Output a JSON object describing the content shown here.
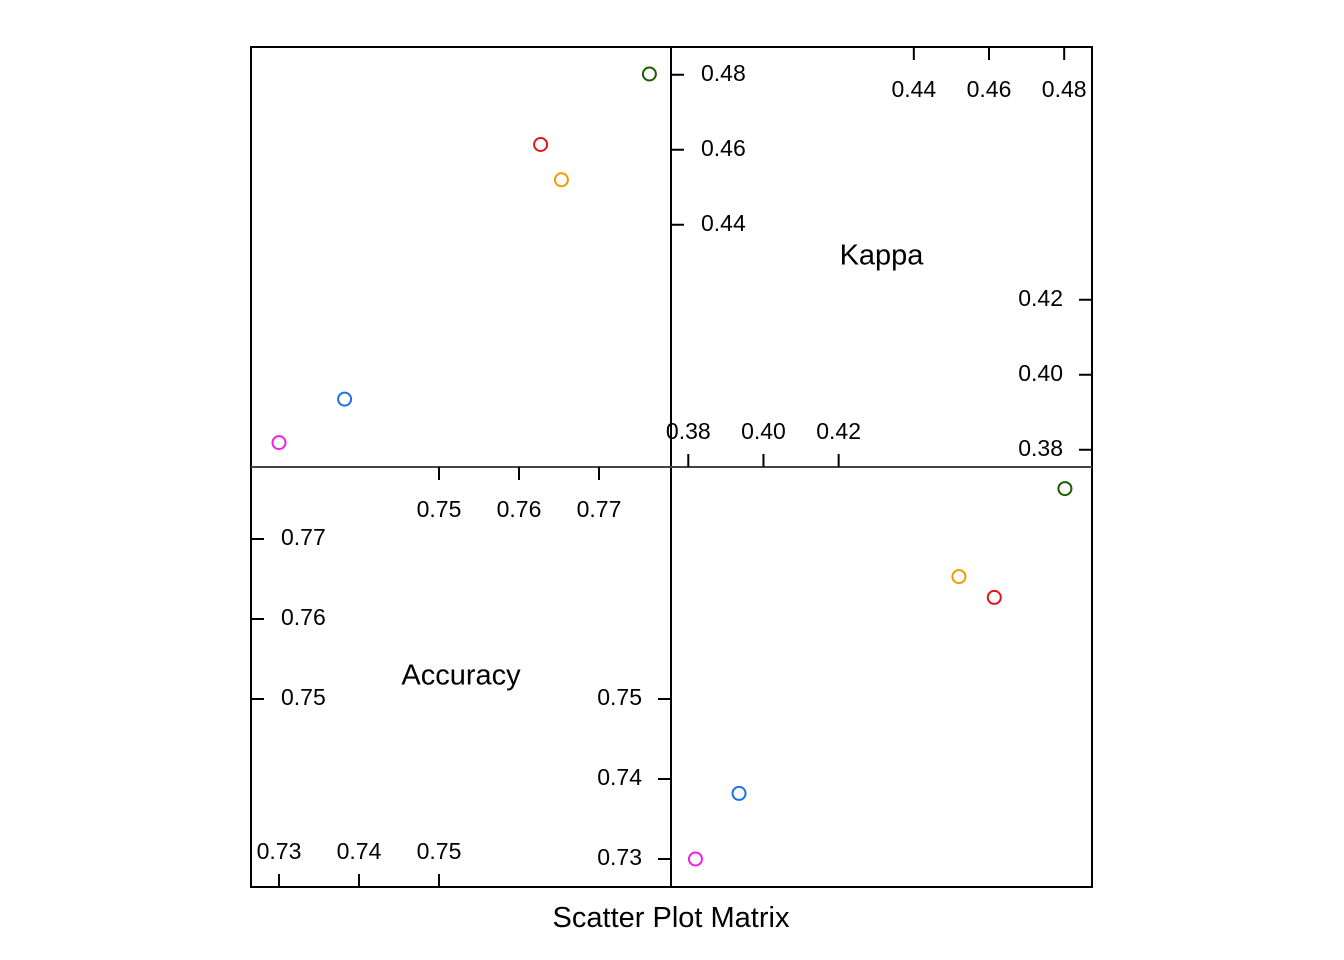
{
  "chart_data": {
    "type": "scatter",
    "title": "Scatter Plot Matrix",
    "variables": [
      {
        "name": "Accuracy",
        "range": [
          0.7265,
          0.779
        ],
        "ticks_low": [
          "0.73",
          "0.74",
          "0.75"
        ],
        "ticks_low_values": [
          0.73,
          0.74,
          0.75
        ],
        "ticks_high": [
          "0.75",
          "0.76",
          "0.77"
        ],
        "ticks_high_values": [
          0.75,
          0.76,
          0.77
        ]
      },
      {
        "name": "Kappa",
        "range": [
          0.3754,
          0.4874
        ],
        "ticks_low": [
          "0.38",
          "0.40",
          "0.42"
        ],
        "ticks_low_values": [
          0.38,
          0.4,
          0.42
        ],
        "ticks_high": [
          "0.44",
          "0.46",
          "0.48"
        ],
        "ticks_high_values": [
          0.44,
          0.46,
          0.48
        ]
      }
    ],
    "points": [
      {
        "accuracy": 0.7763,
        "kappa": 0.4802,
        "color": "#1a5c00"
      },
      {
        "accuracy": 0.7627,
        "kappa": 0.4614,
        "color": "#e8121c"
      },
      {
        "accuracy": 0.7653,
        "kappa": 0.452,
        "color": "#f39a00"
      },
      {
        "accuracy": 0.7382,
        "kappa": 0.3935,
        "color": "#1f6fe8"
      },
      {
        "accuracy": 0.73,
        "kappa": 0.3819,
        "color": "#f01ee6"
      }
    ],
    "grid": false
  }
}
